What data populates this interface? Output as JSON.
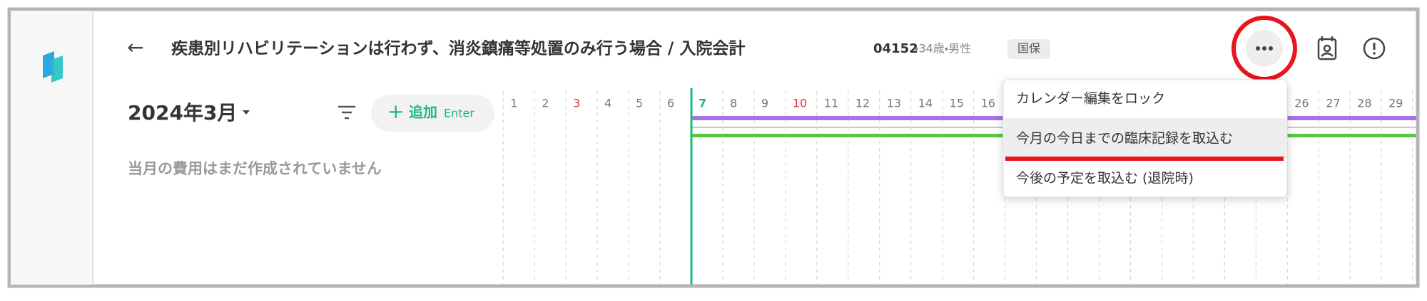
{
  "header": {
    "back": "←",
    "title": "疾患別リハビリテーションは行わず、消炎鎮痛等処置のみ行う場合 / 入院会計",
    "patient_id": "04152",
    "patient_info": "・34歳・男性",
    "badge": "国保"
  },
  "toolbar": {
    "month": "2024年3月",
    "add_label": "追加",
    "add_shortcut": "Enter"
  },
  "empty_message": "当月の費用はまだ作成されていません",
  "calendar": {
    "days": [
      {
        "day": 1,
        "color": "#777777"
      },
      {
        "day": 2,
        "color": "#777777"
      },
      {
        "day": 3,
        "color": "#d9363e"
      },
      {
        "day": 4,
        "color": "#777777"
      },
      {
        "day": 5,
        "color": "#777777"
      },
      {
        "day": 6,
        "color": "#777777"
      },
      {
        "day": 7,
        "color": "#1db978"
      },
      {
        "day": 8,
        "color": "#777777"
      },
      {
        "day": 9,
        "color": "#777777"
      },
      {
        "day": 10,
        "color": "#d9363e"
      },
      {
        "day": 11,
        "color": "#777777"
      },
      {
        "day": 12,
        "color": "#777777"
      },
      {
        "day": 13,
        "color": "#777777"
      },
      {
        "day": 14,
        "color": "#777777"
      },
      {
        "day": 15,
        "color": "#777777"
      },
      {
        "day": 16,
        "color": "#777777"
      },
      {
        "day": 26,
        "color": "#777777"
      },
      {
        "day": 27,
        "color": "#777777"
      },
      {
        "day": 28,
        "color": "#777777"
      },
      {
        "day": 29,
        "color": "#777777"
      }
    ],
    "today": 7
  },
  "menu": {
    "items": [
      "カレンダー編集をロック",
      "今月の今日までの臨床記録を取込む",
      "今後の予定を取込む (退院時)"
    ],
    "highlighted": 1
  }
}
